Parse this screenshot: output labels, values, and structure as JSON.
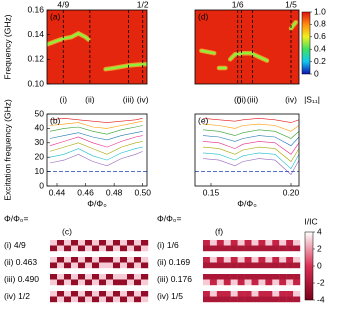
{
  "chart_data": [
    {
      "type": "heatmap",
      "label": "(a)",
      "ylabel": "Frequency (GHz)",
      "color": "#e4260e",
      "xlim": [
        0.433,
        0.503
      ],
      "ylim": [
        0.1,
        0.16
      ],
      "yticks": [
        {
          "value": 0.1,
          "label": "0.10"
        },
        0.12,
        0.14,
        0.16
      ],
      "top_labels": [
        {
          "value": 0.4444,
          "label": "4/9"
        },
        {
          "value": 0.5,
          "label": "1/2"
        }
      ],
      "markers": [
        {
          "x": 0.4444,
          "label": "(i)"
        },
        {
          "x": 0.463,
          "label": "(ii)"
        },
        {
          "x": 0.49,
          "label": "(iii)"
        },
        {
          "x": 0.5,
          "label": "(iv)"
        }
      ],
      "series": [
        {
          "color": "#8cf03c",
          "x": [
            0.433,
            0.44,
            0.445,
            0.45,
            0.455,
            0.46,
            0.462
          ],
          "values": [
            0.132,
            0.135,
            0.137,
            0.138,
            0.141,
            0.138,
            0.136
          ]
        },
        {
          "color": "#8cf03c",
          "x": [
            0.474,
            0.48,
            0.49,
            0.5,
            0.503
          ],
          "values": [
            0.112,
            0.113,
            0.115,
            0.116,
            0.116
          ]
        }
      ],
      "colorbar": {
        "label": "|S₁₁|",
        "zlim": [
          0,
          1
        ],
        "ticks": [
          0,
          0.2,
          0.4,
          0.6,
          0.8,
          {
            "value": 1,
            "label": "1.0"
          }
        ]
      }
    },
    {
      "type": "heatmap",
      "label": "(d)",
      "color": "#e4260e",
      "xlim": [
        0.14,
        0.205
      ],
      "ylim": [
        0.1,
        0.16
      ],
      "top_labels": [
        {
          "value": 0.1667,
          "label": "1/6"
        },
        {
          "value": 0.2,
          "label": "1/5"
        }
      ],
      "markers": [
        {
          "x": 0.1667,
          "label": "(i)"
        },
        {
          "x": 0.169,
          "label": "(ii)"
        },
        {
          "x": 0.176,
          "label": "(iii)"
        },
        {
          "x": 0.2,
          "label": "(iv)"
        }
      ],
      "series": [
        {
          "color": "#8cf03c",
          "x": [
            0.144,
            0.148,
            0.152
          ],
          "values": [
            0.127,
            0.126,
            0.125
          ]
        },
        {
          "color": "#8cf03c",
          "x": [
            0.155,
            0.159
          ],
          "values": [
            0.113,
            0.113
          ]
        },
        {
          "color": "#8cf03c",
          "x": [
            0.162,
            0.165,
            0.17,
            0.175,
            0.18,
            0.185
          ],
          "values": [
            0.12,
            0.124,
            0.125,
            0.125,
            0.122,
            0.119
          ]
        },
        {
          "color": "#8cf03c",
          "x": [
            0.2,
            0.203
          ],
          "values": [
            0.145,
            0.15
          ]
        }
      ]
    },
    {
      "type": "line",
      "label": "(b)",
      "ylabel": "Excitation frequency (GHz)",
      "xlabel": "Φ/Φ₀",
      "xlim": [
        0.433,
        0.503
      ],
      "ylim": [
        0,
        50
      ],
      "xticks": [
        0.44,
        0.46,
        0.48,
        {
          "value": 0.5,
          "label": "0.50"
        }
      ],
      "yticks": [
        0,
        10,
        20,
        30,
        40,
        50
      ],
      "hline": 10,
      "x": [
        0.435,
        0.445,
        0.455,
        0.465,
        0.475,
        0.485,
        0.495,
        0.5
      ],
      "series": [
        {
          "color": "#e41a1c",
          "values": [
            46,
            47,
            46,
            45,
            44,
            45,
            46,
            47
          ]
        },
        {
          "color": "#ff9900",
          "values": [
            42,
            43,
            44,
            41,
            40,
            42,
            44,
            45
          ]
        },
        {
          "color": "#33a02c",
          "values": [
            38,
            40,
            41,
            38,
            36,
            39,
            41,
            42
          ]
        },
        {
          "color": "#1f78b4",
          "values": [
            33,
            35,
            37,
            34,
            32,
            35,
            37,
            38
          ]
        },
        {
          "color": "#e7298a",
          "values": [
            28,
            31,
            34,
            30,
            27,
            31,
            34,
            35
          ]
        },
        {
          "color": "#a6a600",
          "values": [
            24,
            27,
            30,
            26,
            22,
            27,
            30,
            31
          ]
        },
        {
          "color": "#17becf",
          "values": [
            20,
            22,
            26,
            21,
            18,
            23,
            26,
            27
          ]
        },
        {
          "color": "#9467bd",
          "values": [
            16,
            18,
            22,
            17,
            14,
            19,
            22,
            24
          ]
        }
      ]
    },
    {
      "type": "line",
      "label": "(e)",
      "xlabel": "Φ/Φ₀",
      "xlim": [
        0.14,
        0.205
      ],
      "ylim": [
        0,
        50
      ],
      "xticks": [
        0.15,
        {
          "value": 0.2,
          "label": "0.20"
        }
      ],
      "hline": 10,
      "x": [
        0.145,
        0.155,
        0.165,
        0.17,
        0.18,
        0.19,
        0.2,
        0.205
      ],
      "series": [
        {
          "color": "#e41a1c",
          "values": [
            47,
            46,
            45,
            46,
            47,
            46,
            44,
            46
          ]
        },
        {
          "color": "#ff9900",
          "values": [
            43,
            42,
            40,
            42,
            43,
            42,
            38,
            42
          ]
        },
        {
          "color": "#33a02c",
          "values": [
            39,
            38,
            35,
            37,
            39,
            38,
            33,
            38
          ]
        },
        {
          "color": "#1f78b4",
          "values": [
            35,
            34,
            31,
            33,
            35,
            34,
            28,
            34
          ]
        },
        {
          "color": "#e7298a",
          "values": [
            31,
            30,
            26,
            29,
            31,
            30,
            22,
            30
          ]
        },
        {
          "color": "#a6a600",
          "values": [
            27,
            26,
            22,
            25,
            27,
            26,
            17,
            26
          ]
        },
        {
          "color": "#17becf",
          "values": [
            23,
            22,
            18,
            21,
            23,
            22,
            12,
            22
          ]
        },
        {
          "color": "#9467bd",
          "values": [
            19,
            18,
            14,
            17,
            19,
            18,
            8,
            18
          ]
        }
      ]
    },
    {
      "type": "pattern",
      "label": "(c)",
      "heading": "Φ/Φ₀=",
      "zlim": [
        -4,
        4
      ],
      "colors": [
        "#7a0019",
        "#dc2f55",
        "#ffffff"
      ],
      "rows": [
        {
          "label": "(i) 4/9",
          "cells": [
            [
              3,
              -3,
              3,
              -3,
              3,
              -3,
              3,
              -3,
              3,
              -3,
              3,
              -3,
              3,
              -3
            ],
            [
              -3,
              3,
              -3,
              3,
              -3,
              3,
              -3,
              3,
              -3,
              3,
              -3,
              3,
              -3,
              3
            ]
          ]
        },
        {
          "label": "(ii) 0.463",
          "cells": [
            [
              3,
              -3,
              3,
              -3,
              3,
              -3,
              3,
              -3,
              -3,
              3,
              -3,
              3,
              -3,
              3
            ],
            [
              -3,
              3,
              -3,
              3,
              -3,
              3,
              -3,
              3,
              3,
              -3,
              3,
              -3,
              3,
              -3
            ]
          ]
        },
        {
          "label": "(iii) 0.490",
          "cells": [
            [
              -3,
              3,
              -3,
              3,
              -3,
              3,
              -3,
              3,
              -3,
              3,
              3,
              -3,
              3,
              -3
            ],
            [
              3,
              -3,
              3,
              -3,
              3,
              -3,
              3,
              -3,
              3,
              -3,
              -3,
              3,
              -3,
              3
            ]
          ]
        },
        {
          "label": "(iv) 1/2",
          "cells": [
            [
              3,
              -3,
              3,
              -3,
              3,
              -3,
              3,
              -3,
              3,
              -3,
              3,
              -3,
              3,
              -3
            ],
            [
              -3,
              3,
              -3,
              3,
              -3,
              3,
              -3,
              3,
              -3,
              3,
              -3,
              3,
              -3,
              3
            ]
          ]
        }
      ]
    },
    {
      "type": "pattern",
      "label": "(f)",
      "heading": "Φ/Φ₀=",
      "zlim": [
        -4,
        4
      ],
      "colors": [
        "#7a0019",
        "#dc2f55",
        "#ffffff"
      ],
      "rows": [
        {
          "label": "(i) 1/6",
          "cells": [
            [
              -1,
              3,
              -1,
              3,
              -1,
              3,
              -1,
              3,
              -1,
              3,
              -1,
              3,
              -1,
              3
            ],
            [
              -2,
              -2,
              -2,
              -2,
              -2,
              -2,
              -2,
              -2,
              -2,
              -2,
              -2,
              -2,
              -2,
              -2
            ]
          ]
        },
        {
          "label": "(ii) 0.169",
          "cells": [
            [
              -1,
              3,
              -1,
              3,
              -1,
              3,
              -1,
              3,
              -1,
              3,
              -1,
              3,
              -1,
              3
            ],
            [
              -2,
              -2,
              -2,
              -2,
              -2,
              -2,
              -2,
              -2,
              -2,
              -2,
              -2,
              -2,
              -2,
              -2
            ]
          ]
        },
        {
          "label": "(iii) 0.176",
          "cells": [
            [
              -2,
              -2,
              -2,
              -2,
              -2,
              -2,
              -2,
              -2,
              -2,
              -2,
              -2,
              -2,
              -2,
              -2
            ],
            [
              3,
              -1,
              3,
              -1,
              3,
              -1,
              3,
              -1,
              3,
              -1,
              3,
              -1,
              3,
              -1
            ]
          ]
        },
        {
          "label": "(iv) 1/5",
          "cells": [
            [
              -1,
              3,
              -1,
              -1,
              3,
              -1,
              -1,
              3,
              -1,
              -1,
              3,
              -1,
              -1,
              3
            ],
            [
              -2,
              -2,
              -2,
              -2,
              -2,
              -2,
              -2,
              -2,
              -2,
              -2,
              -2,
              -2,
              -2,
              -2
            ]
          ]
        }
      ],
      "colorbar": {
        "label": "I/IC",
        "ticks": [
          4,
          2,
          0,
          -2,
          -4
        ]
      }
    }
  ]
}
